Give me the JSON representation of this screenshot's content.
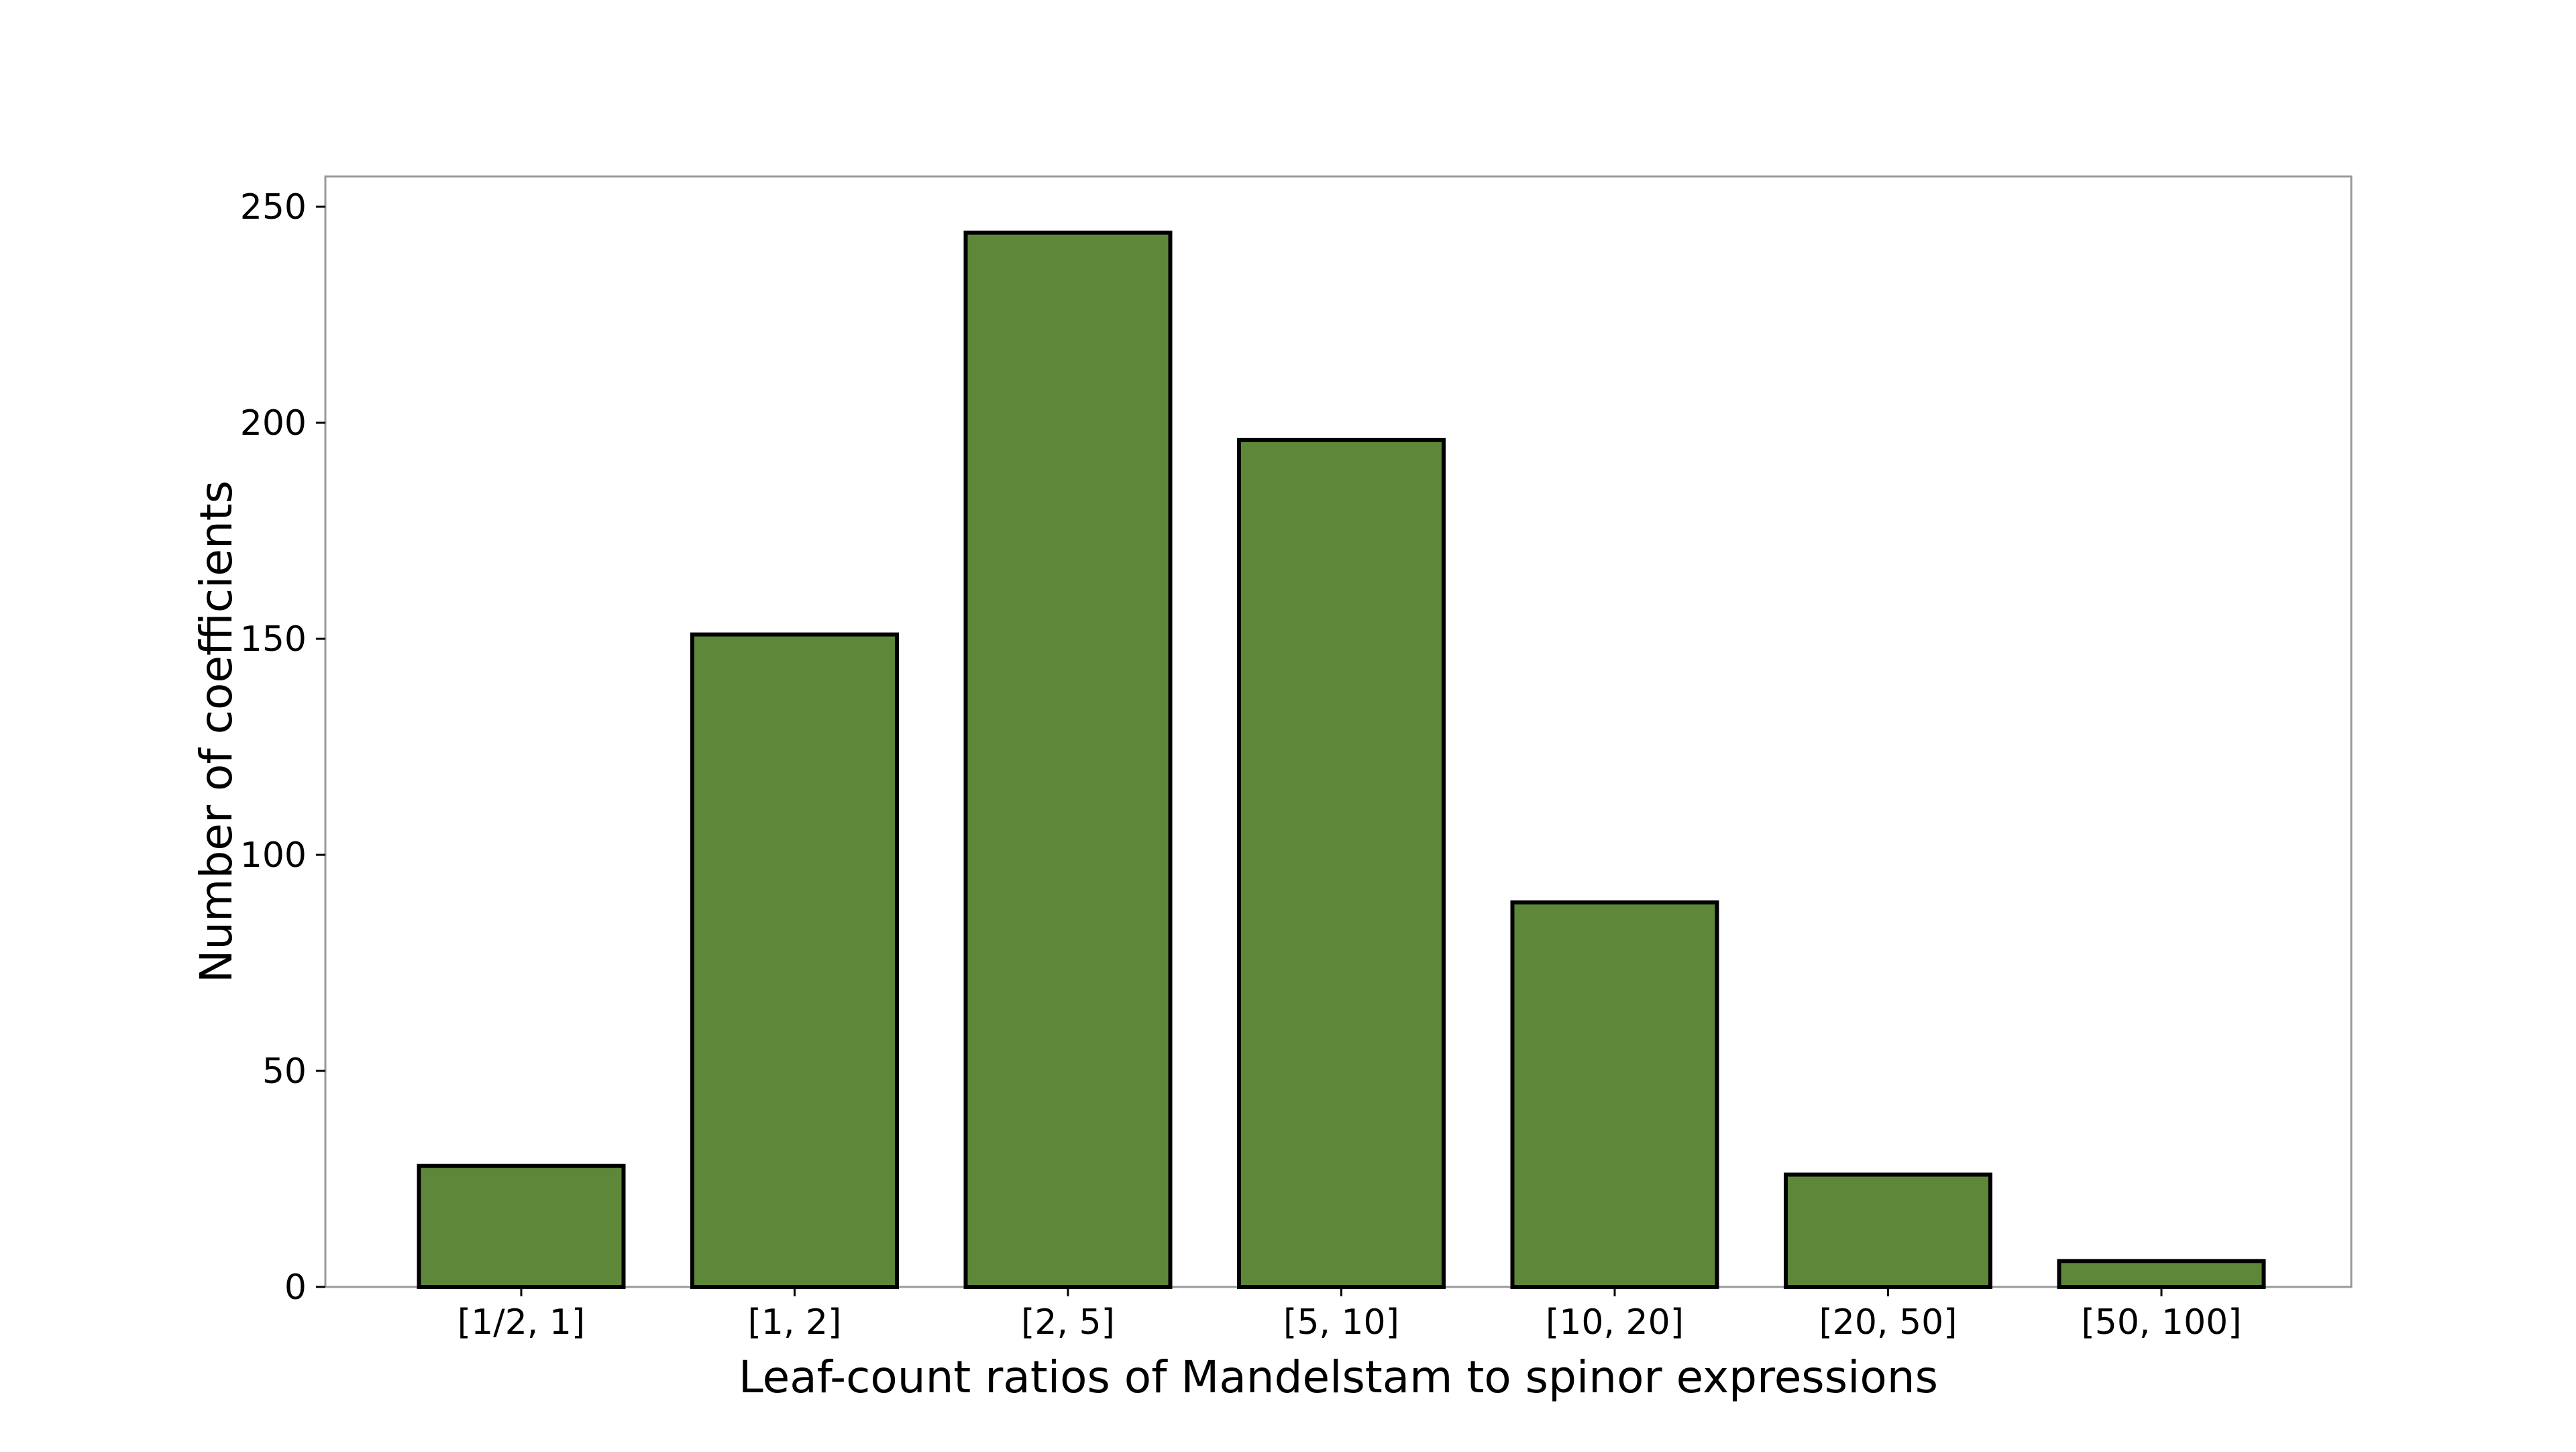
{
  "chart_data": {
    "type": "bar",
    "title": "",
    "xlabel": "Leaf-count ratios of Mandelstam to spinor expressions",
    "ylabel": "Number of coefficients",
    "categories": [
      "[1/2, 1]",
      "[1, 2]",
      "[2, 5]",
      "[5, 10]",
      "[10, 20]",
      "[20, 50]",
      "[50, 100]"
    ],
    "values": [
      28,
      151,
      244,
      196,
      89,
      26,
      6
    ],
    "ylim": [
      0,
      257
    ],
    "yticks": [
      0,
      50,
      100,
      150,
      200,
      250
    ],
    "grid": false,
    "bar_color": "#5f873a",
    "bar_edge_color": "#000000"
  }
}
